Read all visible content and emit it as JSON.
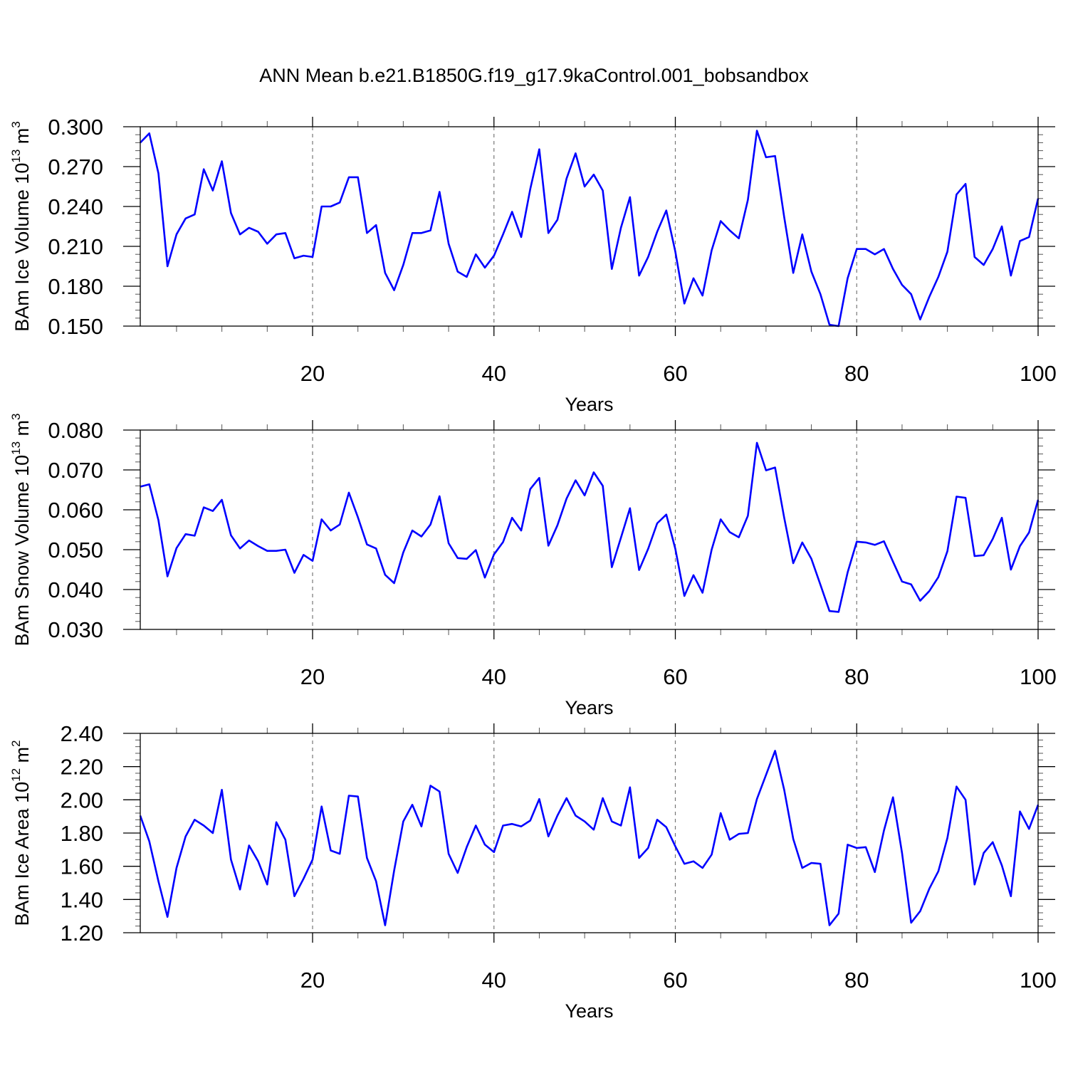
{
  "title": "ANN Mean b.e21.B1850G.f19_g17.9kaControl.001_bobsandbox",
  "colors": {
    "series": "#0000ff",
    "axes": "#000000",
    "grid": "#777777"
  },
  "chart_data": [
    {
      "type": "line",
      "ylabel": "BAm Ice Volume 10",
      "ylabel_sup": "13",
      "ylabel_unit": "m",
      "ylabel_unit_sup": "3",
      "xlabel": "Years",
      "xlim": [
        1,
        100
      ],
      "ylim": [
        0.15,
        0.3
      ],
      "yticks": [
        0.15,
        0.18,
        0.21,
        0.24,
        0.27,
        0.3
      ],
      "ytick_labels": [
        "0.150",
        "0.180",
        "0.210",
        "0.240",
        "0.270",
        "0.300"
      ],
      "xticks": [
        20,
        40,
        60,
        80,
        100
      ],
      "xtick_labels": [
        "20",
        "40",
        "60",
        "80",
        "100"
      ],
      "grid": "vertical dashed at x ticks",
      "x": [
        1,
        2,
        3,
        4,
        5,
        6,
        7,
        8,
        9,
        10,
        11,
        12,
        13,
        14,
        15,
        16,
        17,
        18,
        19,
        20,
        21,
        22,
        23,
        24,
        25,
        26,
        27,
        28,
        29,
        30,
        31,
        32,
        33,
        34,
        35,
        36,
        37,
        38,
        39,
        40,
        41,
        42,
        43,
        44,
        45,
        46,
        47,
        48,
        49,
        50,
        51,
        52,
        53,
        54,
        55,
        56,
        57,
        58,
        59,
        60,
        61,
        62,
        63,
        64,
        65,
        66,
        67,
        68,
        69,
        70,
        71,
        72,
        73,
        74,
        75,
        76,
        77,
        78,
        79,
        80,
        81,
        82,
        83,
        84,
        85,
        86,
        87,
        88,
        89,
        90,
        91,
        92,
        93,
        94,
        95,
        96,
        97,
        98,
        99,
        100
      ],
      "values": [
        0.288,
        0.295,
        0.265,
        0.195,
        0.219,
        0.231,
        0.234,
        0.268,
        0.252,
        0.274,
        0.235,
        0.219,
        0.224,
        0.221,
        0.212,
        0.219,
        0.22,
        0.201,
        0.203,
        0.202,
        0.24,
        0.24,
        0.243,
        0.262,
        0.262,
        0.22,
        0.226,
        0.19,
        0.177,
        0.196,
        0.22,
        0.22,
        0.222,
        0.251,
        0.212,
        0.191,
        0.187,
        0.204,
        0.194,
        0.203,
        0.219,
        0.236,
        0.217,
        0.253,
        0.283,
        0.22,
        0.23,
        0.261,
        0.28,
        0.255,
        0.264,
        0.252,
        0.193,
        0.224,
        0.247,
        0.188,
        0.202,
        0.221,
        0.237,
        0.206,
        0.167,
        0.186,
        0.173,
        0.207,
        0.229,
        0.222,
        0.216,
        0.245,
        0.297,
        0.277,
        0.278,
        0.232,
        0.19,
        0.219,
        0.191,
        0.174,
        0.151,
        0.15,
        0.186,
        0.208,
        0.208,
        0.204,
        0.208,
        0.193,
        0.181,
        0.174,
        0.155,
        0.172,
        0.187,
        0.206,
        0.249,
        0.257,
        0.202,
        0.196,
        0.208,
        0.225,
        0.188,
        0.214,
        0.217,
        0.246
      ]
    },
    {
      "type": "line",
      "ylabel": "BAm Snow Volume 10",
      "ylabel_sup": "13",
      "ylabel_unit": "m",
      "ylabel_unit_sup": "3",
      "xlabel": "Years",
      "xlim": [
        1,
        100
      ],
      "ylim": [
        0.03,
        0.08
      ],
      "yticks": [
        0.03,
        0.04,
        0.05,
        0.06,
        0.07,
        0.08
      ],
      "ytick_labels": [
        "0.030",
        "0.040",
        "0.050",
        "0.060",
        "0.070",
        "0.080"
      ],
      "xticks": [
        20,
        40,
        60,
        80,
        100
      ],
      "xtick_labels": [
        "20",
        "40",
        "60",
        "80",
        "100"
      ],
      "grid": "vertical dashed at x ticks",
      "x": [
        1,
        2,
        3,
        4,
        5,
        6,
        7,
        8,
        9,
        10,
        11,
        12,
        13,
        14,
        15,
        16,
        17,
        18,
        19,
        20,
        21,
        22,
        23,
        24,
        25,
        26,
        27,
        28,
        29,
        30,
        31,
        32,
        33,
        34,
        35,
        36,
        37,
        38,
        39,
        40,
        41,
        42,
        43,
        44,
        45,
        46,
        47,
        48,
        49,
        50,
        51,
        52,
        53,
        54,
        55,
        56,
        57,
        58,
        59,
        60,
        61,
        62,
        63,
        64,
        65,
        66,
        67,
        68,
        69,
        70,
        71,
        72,
        73,
        74,
        75,
        76,
        77,
        78,
        79,
        80,
        81,
        82,
        83,
        84,
        85,
        86,
        87,
        88,
        89,
        90,
        91,
        92,
        93,
        94,
        95,
        96,
        97,
        98,
        99,
        100
      ],
      "values": [
        0.0658,
        0.0664,
        0.0574,
        0.0433,
        0.0504,
        0.0539,
        0.0535,
        0.0606,
        0.0597,
        0.0625,
        0.0536,
        0.0503,
        0.0523,
        0.0509,
        0.0497,
        0.0497,
        0.05,
        0.0442,
        0.0487,
        0.0472,
        0.0576,
        0.0548,
        0.0563,
        0.0643,
        0.0581,
        0.0513,
        0.0503,
        0.0437,
        0.0416,
        0.0493,
        0.0548,
        0.0533,
        0.0563,
        0.0634,
        0.0516,
        0.0479,
        0.0477,
        0.0499,
        0.043,
        0.0488,
        0.0519,
        0.058,
        0.0548,
        0.0652,
        0.068,
        0.051,
        0.0561,
        0.0628,
        0.0674,
        0.0636,
        0.0694,
        0.066,
        0.0456,
        0.053,
        0.0604,
        0.0449,
        0.0502,
        0.0566,
        0.0588,
        0.0502,
        0.0384,
        0.0436,
        0.0392,
        0.05,
        0.0576,
        0.0544,
        0.0531,
        0.0585,
        0.0768,
        0.0699,
        0.0706,
        0.058,
        0.0466,
        0.0518,
        0.0477,
        0.0412,
        0.0346,
        0.0344,
        0.0443,
        0.052,
        0.0518,
        0.0512,
        0.0521,
        0.047,
        0.042,
        0.0413,
        0.0372,
        0.0396,
        0.0431,
        0.0496,
        0.0633,
        0.063,
        0.0484,
        0.0486,
        0.0527,
        0.058,
        0.045,
        0.0509,
        0.0543,
        0.0625
      ]
    },
    {
      "type": "line",
      "ylabel": "BAm Ice Area 10",
      "ylabel_sup": "12",
      "ylabel_unit": "m",
      "ylabel_unit_sup": "2",
      "xlabel": "Years",
      "xlim": [
        1,
        100
      ],
      "ylim": [
        1.2,
        2.4
      ],
      "yticks": [
        1.2,
        1.4,
        1.6,
        1.8,
        2.0,
        2.2,
        2.4
      ],
      "ytick_labels": [
        "1.20",
        "1.40",
        "1.60",
        "1.80",
        "2.00",
        "2.20",
        "2.40"
      ],
      "xticks": [
        20,
        40,
        60,
        80,
        100
      ],
      "xtick_labels": [
        "20",
        "40",
        "60",
        "80",
        "100"
      ],
      "grid": "vertical dashed at x ticks",
      "x": [
        1,
        2,
        3,
        4,
        5,
        6,
        7,
        8,
        9,
        10,
        11,
        12,
        13,
        14,
        15,
        16,
        17,
        18,
        19,
        20,
        21,
        22,
        23,
        24,
        25,
        26,
        27,
        28,
        29,
        30,
        31,
        32,
        33,
        34,
        35,
        36,
        37,
        38,
        39,
        40,
        41,
        42,
        43,
        44,
        45,
        46,
        47,
        48,
        49,
        50,
        51,
        52,
        53,
        54,
        55,
        56,
        57,
        58,
        59,
        60,
        61,
        62,
        63,
        64,
        65,
        66,
        67,
        68,
        69,
        70,
        71,
        72,
        73,
        74,
        75,
        76,
        77,
        78,
        79,
        80,
        81,
        82,
        83,
        84,
        85,
        86,
        87,
        88,
        89,
        90,
        91,
        92,
        93,
        94,
        95,
        96,
        97,
        98,
        99,
        100
      ],
      "values": [
        1.905,
        1.75,
        1.51,
        1.295,
        1.59,
        1.78,
        1.88,
        1.845,
        1.8,
        2.06,
        1.64,
        1.46,
        1.725,
        1.63,
        1.49,
        1.865,
        1.76,
        1.42,
        1.525,
        1.64,
        1.96,
        1.695,
        1.675,
        2.025,
        2.02,
        1.65,
        1.51,
        1.245,
        1.575,
        1.87,
        1.97,
        1.84,
        2.085,
        2.05,
        1.675,
        1.56,
        1.715,
        1.845,
        1.73,
        1.685,
        1.845,
        1.855,
        1.84,
        1.875,
        2.005,
        1.78,
        1.905,
        2.01,
        1.905,
        1.87,
        1.82,
        2.01,
        1.87,
        1.845,
        2.075,
        1.65,
        1.71,
        1.88,
        1.835,
        1.72,
        1.615,
        1.63,
        1.59,
        1.67,
        1.92,
        1.76,
        1.795,
        1.8,
        2.005,
        2.15,
        2.295,
        2.06,
        1.765,
        1.59,
        1.62,
        1.615,
        1.245,
        1.315,
        1.73,
        1.71,
        1.715,
        1.565,
        1.815,
        2.015,
        1.68,
        1.26,
        1.33,
        1.465,
        1.57,
        1.77,
        2.08,
        2.0,
        1.49,
        1.68,
        1.745,
        1.605,
        1.42,
        1.93,
        1.825,
        1.97
      ]
    }
  ]
}
